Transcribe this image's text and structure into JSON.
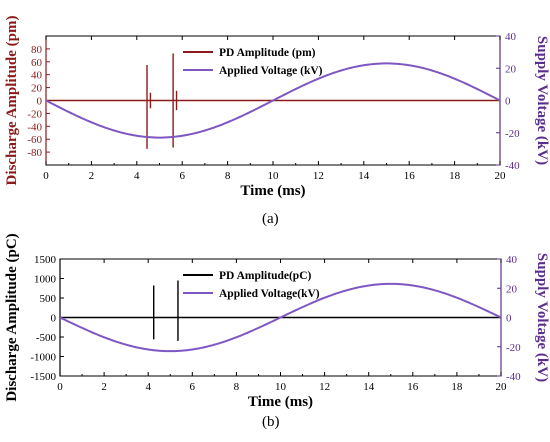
{
  "panels": [
    {
      "caption": "(a)",
      "chart_data": {
        "type": "line",
        "xlabel": "Time (ms)",
        "ylabel_left": "Discharge Amplitude (pm)",
        "ylabel_right": "Supply Voltage (kV)",
        "xlim": [
          0,
          20
        ],
        "ylim_left": [
          -100,
          100
        ],
        "ylim_right": [
          -40,
          40
        ],
        "x_ticks": [
          0,
          2,
          4,
          6,
          8,
          10,
          12,
          14,
          16,
          18,
          20
        ],
        "y_ticks_left": [
          -80,
          -60,
          -40,
          -20,
          0,
          20,
          40,
          60,
          80
        ],
        "y_ticks_right": [
          -40,
          -20,
          0,
          20,
          40
        ],
        "legend_position": "top-center",
        "grid": false,
        "colors": {
          "left_axis": "#8b1a1a",
          "right_axis": "#5b2d8e",
          "pd": "#8b1a1a",
          "voltage": "#7e57c2",
          "axes": "#000000"
        },
        "series": [
          {
            "name": "PD Amplitude (pm)",
            "axis": "left",
            "kind": "pulses",
            "baseline": 0,
            "pulses": [
              {
                "x": 4.45,
                "max": 55,
                "min": -75
              },
              {
                "x": 4.6,
                "max": 12,
                "min": -12
              },
              {
                "x": 5.6,
                "max": 73,
                "min": -73
              },
              {
                "x": 5.75,
                "max": 15,
                "min": -15
              }
            ]
          },
          {
            "name": "Applied Voltage (kV)",
            "axis": "right",
            "kind": "sine",
            "amplitude_kv": 23,
            "period_ms": 20,
            "phase": "negative-first"
          }
        ]
      }
    },
    {
      "caption": "(b)",
      "chart_data": {
        "type": "line",
        "xlabel": "Time (ms)",
        "ylabel_left": "Discharge Amplitude (pC)",
        "ylabel_right": "Supply Voltage (kV)",
        "xlim": [
          0,
          20
        ],
        "ylim_left": [
          -1500,
          1500
        ],
        "ylim_right": [
          -40,
          40
        ],
        "x_ticks": [
          0,
          2,
          4,
          6,
          8,
          10,
          12,
          14,
          16,
          18,
          20
        ],
        "y_ticks_left": [
          -1500,
          -1000,
          -500,
          0,
          500,
          1000,
          1500
        ],
        "y_ticks_right": [
          -40,
          -20,
          0,
          20,
          40
        ],
        "legend_position": "top-center",
        "grid": false,
        "colors": {
          "left_axis": "#000000",
          "right_axis": "#5b2d8e",
          "pd": "#000000",
          "voltage": "#7e57c2",
          "axes": "#000000"
        },
        "series": [
          {
            "name": "PD Amplitude(pC)",
            "axis": "left",
            "kind": "pulses",
            "baseline": 0,
            "pulses": [
              {
                "x": 4.25,
                "max": 820,
                "min": -560
              },
              {
                "x": 5.35,
                "max": 950,
                "min": -600
              }
            ]
          },
          {
            "name": "Applied Voltage(kV)",
            "axis": "right",
            "kind": "sine",
            "amplitude_kv": 23,
            "period_ms": 20,
            "phase": "negative-first"
          }
        ]
      }
    }
  ]
}
